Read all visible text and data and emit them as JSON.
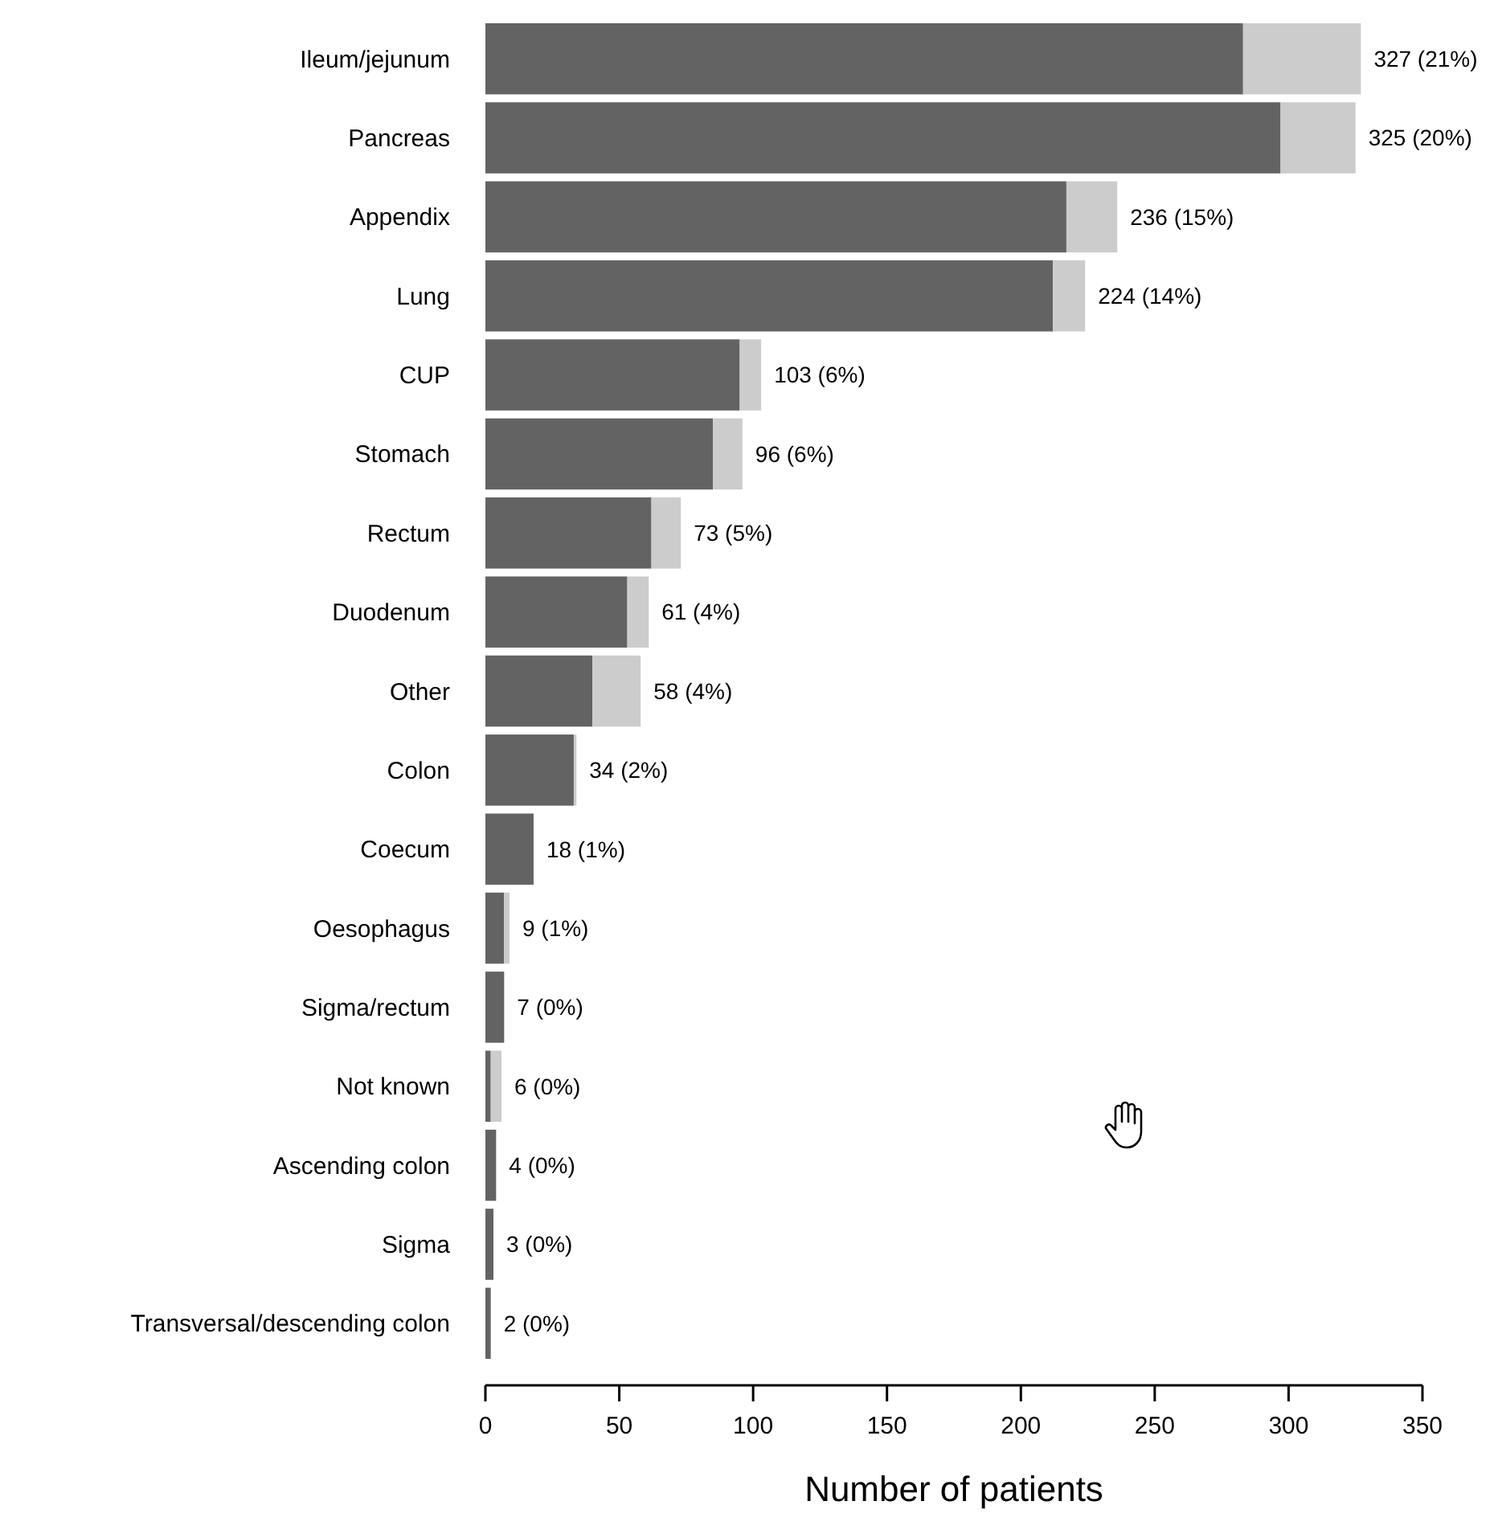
{
  "chart_data": {
    "type": "bar",
    "orientation": "horizontal",
    "stacked": true,
    "xlabel": "Number of patients",
    "categories": [
      "Ileum/jejunum",
      "Pancreas",
      "Appendix",
      "Lung",
      "CUP",
      "Stomach",
      "Rectum",
      "Duodenum",
      "Other",
      "Colon",
      "Coecum",
      "Oesophagus",
      "Sigma/rectum",
      "Not known",
      "Ascending colon",
      "Sigma",
      "Transversal/descending colon"
    ],
    "series": [
      {
        "color": "#636363",
        "values": [
          283,
          297,
          217,
          212,
          95,
          85,
          62,
          53,
          40,
          33,
          18,
          7,
          7,
          2,
          4,
          3,
          2
        ]
      },
      {
        "color": "#cccccc",
        "values": [
          44,
          28,
          19,
          12,
          8,
          11,
          11,
          8,
          18,
          1,
          0,
          2,
          0,
          4,
          0,
          0,
          0
        ]
      }
    ],
    "totals": [
      "327 (21%)",
      "325 (20%)",
      "236 (15%)",
      "224 (14%)",
      "103 (6%)",
      "96 (6%)",
      "73 (5%)",
      "61 (4%)",
      "58 (4%)",
      "34 (2%)",
      "18 (1%)",
      "9 (1%)",
      "7 (0%)",
      "6 (0%)",
      "4 (0%)",
      "3 (0%)",
      "2 (0%)"
    ],
    "xlim": [
      0,
      350
    ],
    "xticks": [
      0,
      50,
      100,
      150,
      200,
      250,
      300,
      350
    ],
    "grid": false
  }
}
